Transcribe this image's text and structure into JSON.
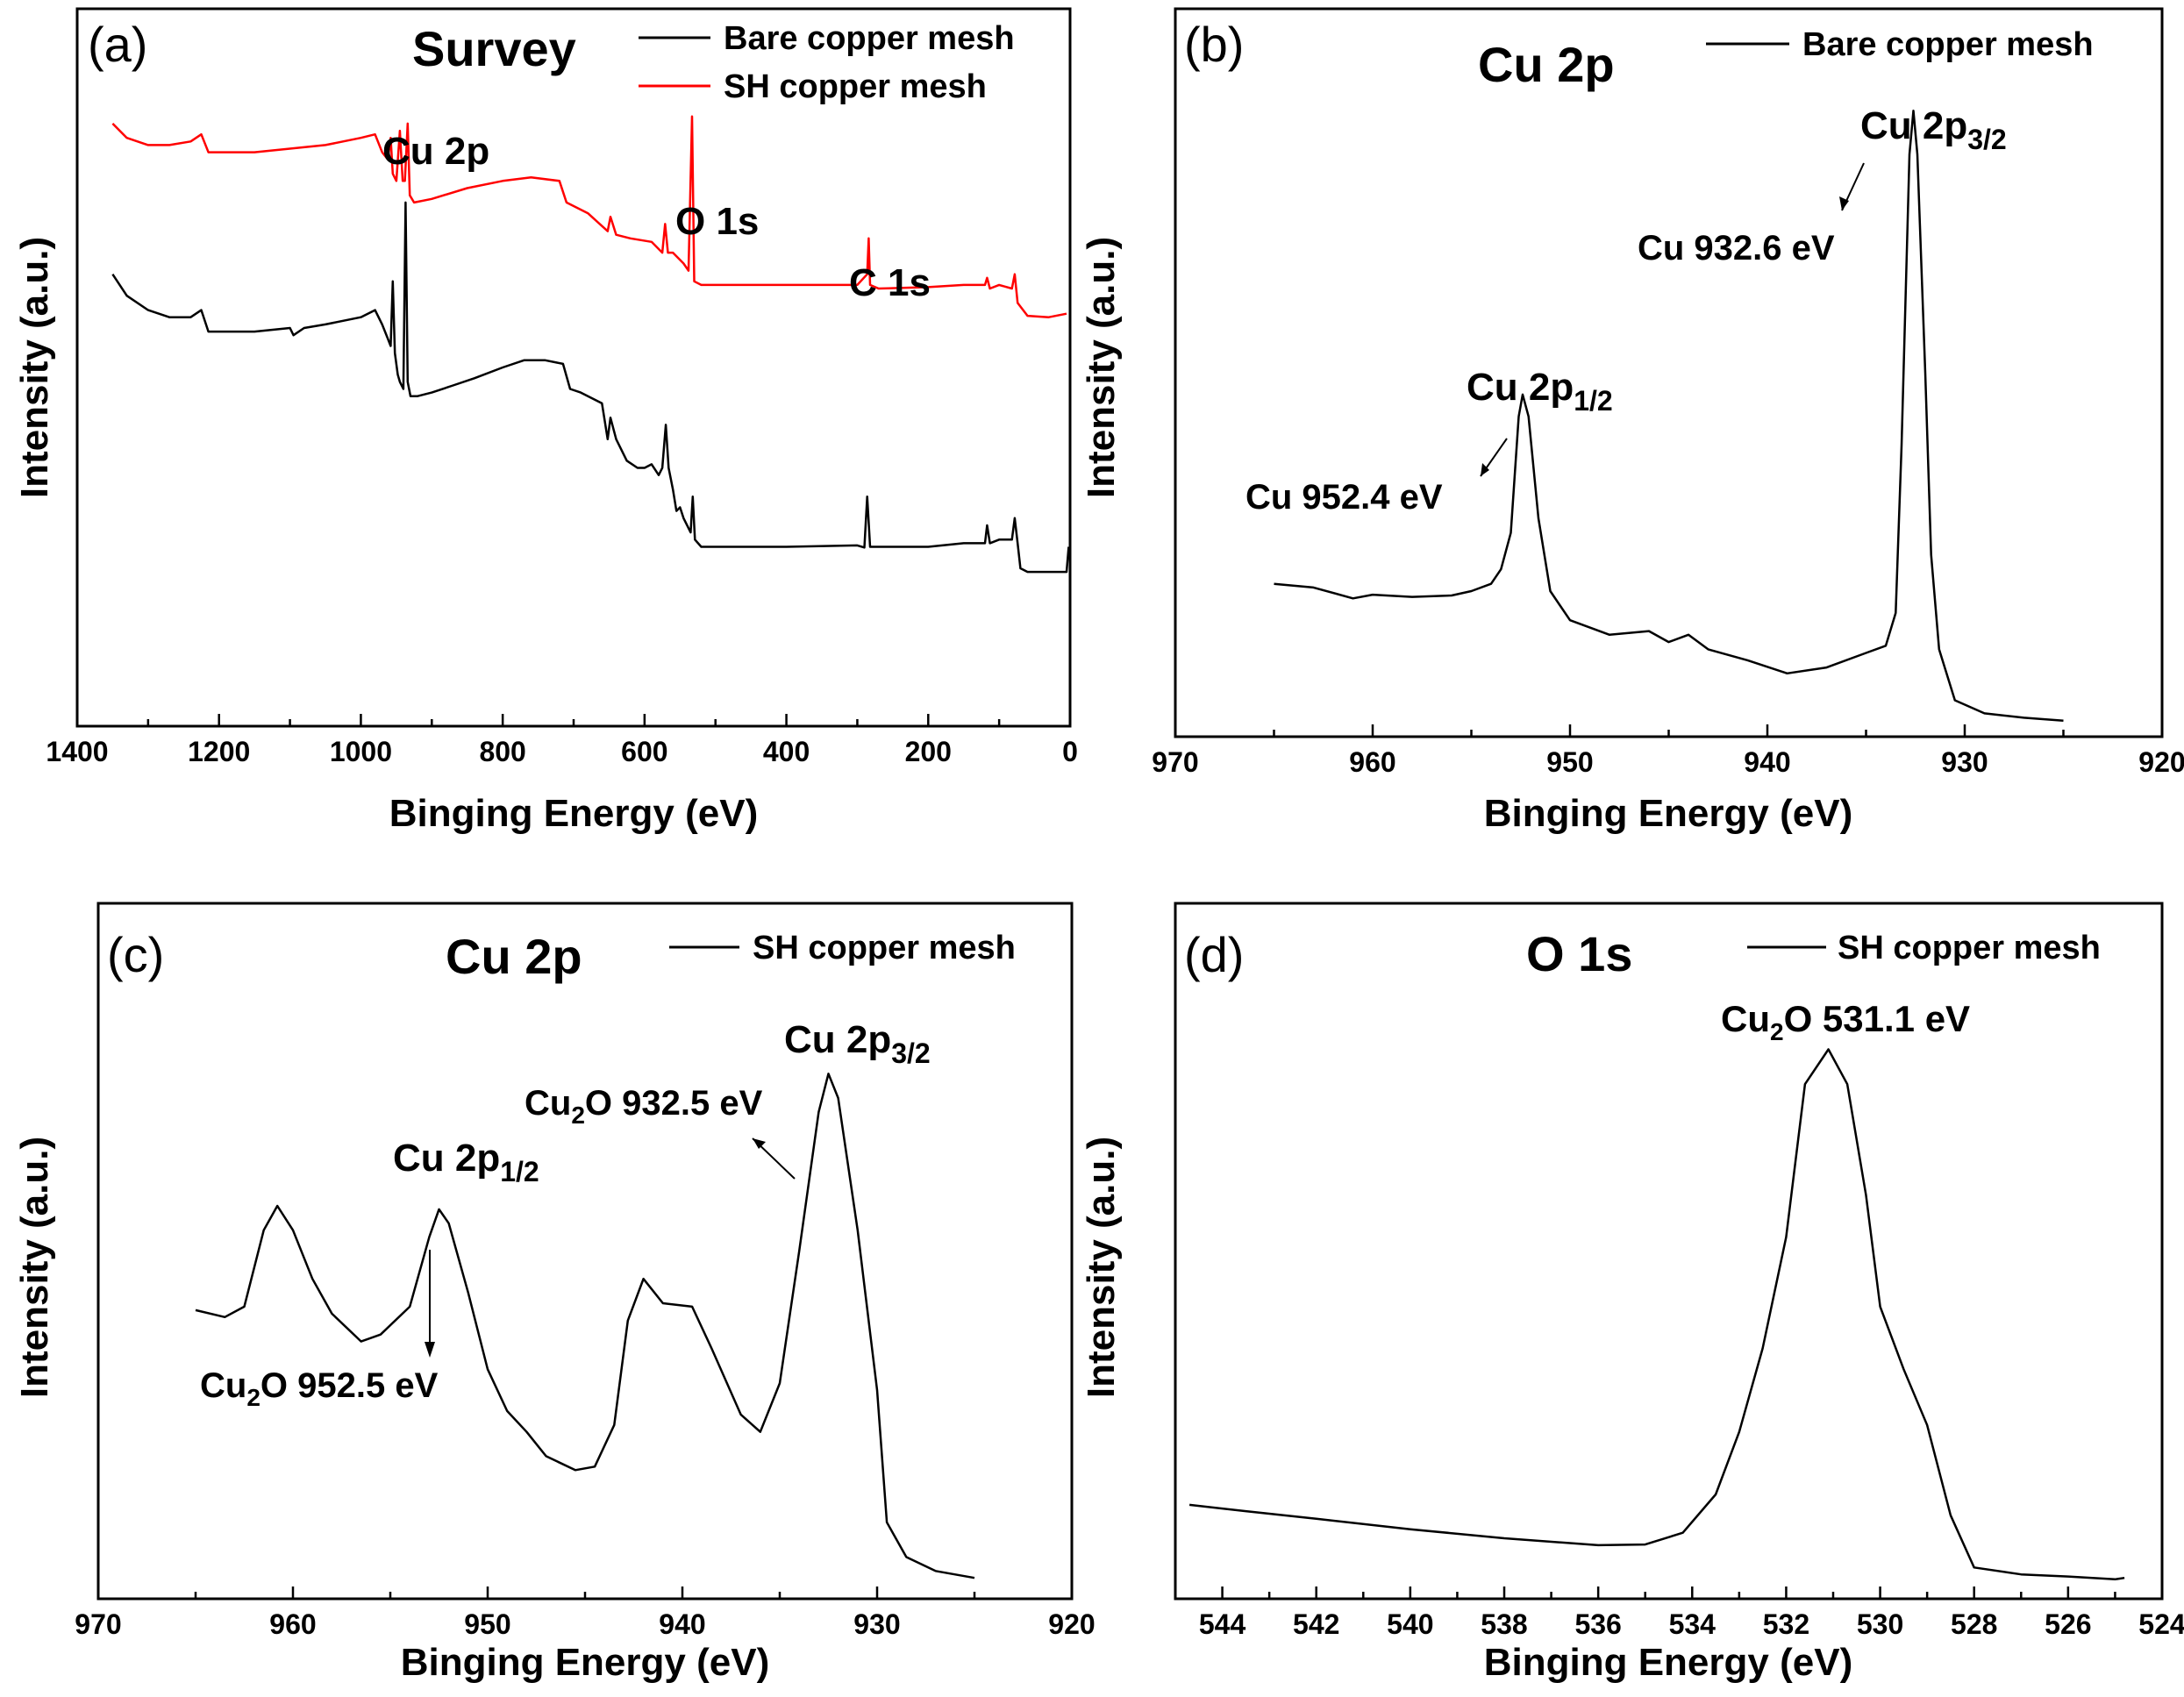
{
  "chart_data": [
    {
      "panel": "(a)",
      "type": "line",
      "title": "Survey",
      "xlabel": "Binging Energy (eV)",
      "ylabel": "Intensity (a.u.)",
      "xlim": [
        1400,
        0
      ],
      "ylim": [
        0,
        100
      ],
      "xticks": [
        1400,
        1200,
        1000,
        800,
        600,
        400,
        200,
        0
      ],
      "legend_position": "top-right",
      "series": [
        {
          "name": "Bare copper mesh",
          "color": "#000000",
          "points": [
            [
              1350,
              63
            ],
            [
              1330,
              60
            ],
            [
              1300,
              58
            ],
            [
              1270,
              57
            ],
            [
              1240,
              57
            ],
            [
              1225,
              58
            ],
            [
              1215,
              55
            ],
            [
              1190,
              55
            ],
            [
              1150,
              55
            ],
            [
              1100,
              55.5
            ],
            [
              1095,
              54.5
            ],
            [
              1080,
              55.5
            ],
            [
              1050,
              56
            ],
            [
              1000,
              57
            ],
            [
              980,
              58
            ],
            [
              970,
              56
            ],
            [
              962,
              54
            ],
            [
              958,
              53
            ],
            [
              955,
              62
            ],
            [
              952,
              52
            ],
            [
              948,
              49
            ],
            [
              945,
              48
            ],
            [
              940,
              47
            ],
            [
              937,
              73
            ],
            [
              934,
              48
            ],
            [
              930,
              46
            ],
            [
              920,
              46
            ],
            [
              900,
              46.5
            ],
            [
              870,
              47.5
            ],
            [
              840,
              48.5
            ],
            [
              800,
              50
            ],
            [
              770,
              51
            ],
            [
              740,
              51
            ],
            [
              715,
              50.5
            ],
            [
              705,
              47
            ],
            [
              690,
              46.5
            ],
            [
              660,
              45
            ],
            [
              652,
              40
            ],
            [
              648,
              43
            ],
            [
              640,
              40
            ],
            [
              625,
              37
            ],
            [
              610,
              36
            ],
            [
              600,
              36
            ],
            [
              590,
              36.5
            ],
            [
              580,
              35
            ],
            [
              575,
              36
            ],
            [
              570,
              42
            ],
            [
              566,
              36
            ],
            [
              560,
              33
            ],
            [
              555,
              30
            ],
            [
              550,
              30.5
            ],
            [
              545,
              29
            ],
            [
              535,
              27
            ],
            [
              532,
              32
            ],
            [
              529,
              26
            ],
            [
              520,
              25
            ],
            [
              480,
              25
            ],
            [
              400,
              25
            ],
            [
              300,
              25.2
            ],
            [
              290,
              24.9
            ],
            [
              286,
              32
            ],
            [
              282,
              25
            ],
            [
              270,
              25
            ],
            [
              200,
              25
            ],
            [
              150,
              25.5
            ],
            [
              120,
              25.5
            ],
            [
              117,
              28
            ],
            [
              113,
              25.5
            ],
            [
              100,
              26
            ],
            [
              82,
              26
            ],
            [
              78,
              29
            ],
            [
              74,
              25.5
            ],
            [
              70,
              22
            ],
            [
              60,
              21.5
            ],
            [
              30,
              21.5
            ],
            [
              5,
              21.5
            ],
            [
              2,
              25
            ]
          ]
        },
        {
          "name": "SH copper mesh",
          "color": "#ff0000",
          "points": [
            [
              1350,
              84
            ],
            [
              1330,
              82
            ],
            [
              1300,
              81
            ],
            [
              1270,
              81
            ],
            [
              1240,
              81.5
            ],
            [
              1225,
              82.5
            ],
            [
              1215,
              80
            ],
            [
              1190,
              80
            ],
            [
              1150,
              80
            ],
            [
              1100,
              80.5
            ],
            [
              1050,
              81
            ],
            [
              1000,
              82
            ],
            [
              980,
              82.5
            ],
            [
              970,
              80
            ],
            [
              962,
              79
            ],
            [
              958,
              82
            ],
            [
              955,
              77
            ],
            [
              950,
              76
            ],
            [
              945,
              83
            ],
            [
              941,
              76
            ],
            [
              938,
              76
            ],
            [
              934,
              84
            ],
            [
              931,
              74
            ],
            [
              925,
              73
            ],
            [
              900,
              73.5
            ],
            [
              850,
              75
            ],
            [
              800,
              76
            ],
            [
              760,
              76.5
            ],
            [
              720,
              76
            ],
            [
              710,
              73
            ],
            [
              680,
              71.5
            ],
            [
              652,
              69
            ],
            [
              648,
              71
            ],
            [
              640,
              68.5
            ],
            [
              620,
              68
            ],
            [
              590,
              67.5
            ],
            [
              575,
              66
            ],
            [
              571,
              70
            ],
            [
              567,
              66
            ],
            [
              560,
              66
            ],
            [
              545,
              64.5
            ],
            [
              538,
              63.5
            ],
            [
              533,
              85
            ],
            [
              530,
              62
            ],
            [
              520,
              61.5
            ],
            [
              480,
              61.5
            ],
            [
              400,
              61.5
            ],
            [
              300,
              61.5
            ],
            [
              286,
              63
            ],
            [
              284,
              68
            ],
            [
              282,
              61.5
            ],
            [
              270,
              61
            ],
            [
              200,
              61.2
            ],
            [
              150,
              61.5
            ],
            [
              120,
              61.5
            ],
            [
              117,
              62.5
            ],
            [
              113,
              61
            ],
            [
              100,
              61.5
            ],
            [
              82,
              61
            ],
            [
              78,
              63
            ],
            [
              74,
              59
            ],
            [
              60,
              57.2
            ],
            [
              30,
              57
            ],
            [
              5,
              57.5
            ]
          ]
        }
      ],
      "annotations": [
        "Cu 2p",
        "O 1s",
        "C 1s"
      ]
    },
    {
      "panel": "(b)",
      "type": "line",
      "title": "Cu 2p",
      "xlabel": "Binging Energy (eV)",
      "ylabel": "Intensity (a.u.)",
      "xlim": [
        970,
        920
      ],
      "ylim": [
        0,
        100
      ],
      "xticks": [
        970,
        960,
        950,
        940,
        930,
        920
      ],
      "legend_position": "top-right",
      "series": [
        {
          "name": "Bare copper mesh",
          "color": "#000000",
          "points": [
            [
              965,
              21
            ],
            [
              963,
              20.5
            ],
            [
              961,
              19
            ],
            [
              960,
              19.5
            ],
            [
              958,
              19.2
            ],
            [
              956,
              19.4
            ],
            [
              955,
              20
            ],
            [
              954,
              21
            ],
            [
              953.5,
              23
            ],
            [
              953,
              28
            ],
            [
              952.6,
              44
            ],
            [
              952.4,
              47
            ],
            [
              952.1,
              44
            ],
            [
              951.6,
              30
            ],
            [
              951,
              20
            ],
            [
              950,
              16
            ],
            [
              948,
              14
            ],
            [
              946,
              14.5
            ],
            [
              945,
              13
            ],
            [
              944,
              14
            ],
            [
              943,
              12
            ],
            [
              941,
              10.5
            ],
            [
              939,
              8.7
            ],
            [
              937,
              9.5
            ],
            [
              935,
              11.5
            ],
            [
              934,
              12.5
            ],
            [
              933.5,
              17
            ],
            [
              933.2,
              40
            ],
            [
              932.8,
              80
            ],
            [
              932.6,
              86
            ],
            [
              932.4,
              80
            ],
            [
              932.0,
              50
            ],
            [
              931.7,
              25
            ],
            [
              931.3,
              12
            ],
            [
              930.5,
              5
            ],
            [
              929,
              3.2
            ],
            [
              927,
              2.6
            ],
            [
              925,
              2.2
            ]
          ]
        }
      ],
      "annotations": [
        "Cu 2p3/2",
        "Cu 932.6 eV",
        "Cu 2p1/2",
        "Cu 952.4 eV"
      ]
    },
    {
      "panel": "(c)",
      "type": "line",
      "title": "Cu 2p",
      "xlabel": "Binging Energy (eV)",
      "ylabel": "Intensity (a.u.)",
      "xlim": [
        970,
        920
      ],
      "ylim": [
        0,
        100
      ],
      "xticks": [
        970,
        960,
        950,
        940,
        930,
        920
      ],
      "legend_position": "top-right",
      "series": [
        {
          "name": "SH copper mesh",
          "color": "#000000",
          "points": [
            [
              965,
              41.5
            ],
            [
              963.5,
              40.5
            ],
            [
              962.5,
              42
            ],
            [
              961.5,
              53
            ],
            [
              960.8,
              56.5
            ],
            [
              960,
              53
            ],
            [
              959,
              46
            ],
            [
              958,
              41
            ],
            [
              956.5,
              37
            ],
            [
              955.5,
              38
            ],
            [
              954,
              42
            ],
            [
              953,
              52
            ],
            [
              952.5,
              56
            ],
            [
              952,
              54
            ],
            [
              951,
              44
            ],
            [
              950,
              33
            ],
            [
              949,
              27
            ],
            [
              948,
              24
            ],
            [
              947,
              20.5
            ],
            [
              945.5,
              18.5
            ],
            [
              944.5,
              19
            ],
            [
              943.5,
              25
            ],
            [
              942.8,
              40
            ],
            [
              942,
              46
            ],
            [
              941,
              42.5
            ],
            [
              939.5,
              42
            ],
            [
              938.5,
              36
            ],
            [
              937,
              26.5
            ],
            [
              936,
              24
            ],
            [
              935,
              31
            ],
            [
              934,
              50
            ],
            [
              933,
              70
            ],
            [
              932.5,
              75.5
            ],
            [
              932,
              72
            ],
            [
              931,
              53
            ],
            [
              930,
              30
            ],
            [
              929.5,
              11
            ],
            [
              928.5,
              6
            ],
            [
              927,
              4
            ],
            [
              925,
              3
            ]
          ]
        }
      ],
      "annotations": [
        "Cu 2p3/2",
        "Cu2O 932.5 eV",
        "Cu 2p1/2",
        "Cu2O 952.5 eV"
      ]
    },
    {
      "panel": "(d)",
      "type": "line",
      "title": "O 1s",
      "xlabel": "Binging Energy (eV)",
      "ylabel": "Intensity (a.u.)",
      "xlim": [
        545,
        524
      ],
      "ylim": [
        0,
        100
      ],
      "xticks": [
        544,
        542,
        540,
        538,
        536,
        534,
        532,
        530,
        528,
        526,
        524
      ],
      "legend_position": "top-right",
      "series": [
        {
          "name": "SH copper mesh",
          "color": "#000000",
          "points": [
            [
              544.7,
              13.5
            ],
            [
              543.5,
              12.6
            ],
            [
              542,
              11.5
            ],
            [
              540,
              10
            ],
            [
              538,
              8.7
            ],
            [
              536,
              7.7
            ],
            [
              535,
              7.8
            ],
            [
              534.2,
              9.5
            ],
            [
              533.5,
              15
            ],
            [
              533,
              24
            ],
            [
              532.5,
              36
            ],
            [
              532,
              52
            ],
            [
              531.6,
              74
            ],
            [
              531.1,
              79
            ],
            [
              530.7,
              74
            ],
            [
              530.3,
              58
            ],
            [
              530,
              42
            ],
            [
              529.5,
              33
            ],
            [
              529,
              25
            ],
            [
              528.5,
              12
            ],
            [
              528,
              4.5
            ],
            [
              527,
              3.5
            ],
            [
              526,
              3.2
            ],
            [
              525,
              2.8
            ],
            [
              524.8,
              3
            ]
          ]
        }
      ],
      "annotations": [
        "Cu2O 531.1 eV"
      ]
    }
  ]
}
